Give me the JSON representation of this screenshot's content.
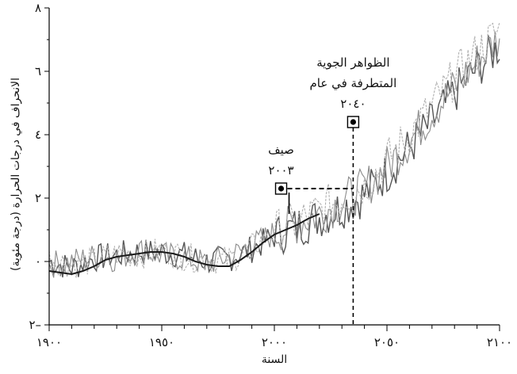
{
  "chart_data": {
    "type": "line",
    "xlabel": "السنة",
    "ylabel": "الانحراف في درجات الحرارة (درجة مئوية)",
    "xlim": [
      1900,
      2100
    ],
    "ylim": [
      -2,
      8
    ],
    "x_ticks": [
      1900,
      1950,
      2000,
      2050,
      2100
    ],
    "x_tick_labels": [
      "١٩٠٠",
      "١٩٥٠",
      "٢٠٠٠",
      "٢٠٥٠",
      "٢١٠٠"
    ],
    "y_ticks": [
      -2,
      0,
      2,
      4,
      6,
      8
    ],
    "y_tick_labels": [
      "٢–",
      "٠",
      "٢",
      "٤",
      "٦",
      "٨"
    ],
    "series": [
      {
        "role": "smoothed-observed",
        "color": "#1a1a1a",
        "x": [
          1900,
          1905,
          1910,
          1915,
          1920,
          1925,
          1930,
          1935,
          1940,
          1945,
          1950,
          1955,
          1960,
          1965,
          1970,
          1975,
          1980,
          1985,
          1990,
          1995,
          2000,
          2005,
          2010,
          2015,
          2020
        ],
        "y": [
          -0.3,
          -0.35,
          -0.4,
          -0.3,
          -0.15,
          0.05,
          0.15,
          0.2,
          0.25,
          0.3,
          0.3,
          0.25,
          0.15,
          0.0,
          -0.1,
          -0.15,
          -0.15,
          0.05,
          0.3,
          0.6,
          0.85,
          1.0,
          1.15,
          1.35,
          1.5
        ]
      },
      {
        "role": "simulation-1",
        "color": "#555555",
        "x": [
          1900,
          1910,
          1920,
          1930,
          1940,
          1950,
          1960,
          1970,
          1980,
          1990,
          2000,
          2010,
          2020,
          2030,
          2040,
          2050,
          2060,
          2070,
          2080,
          2090,
          2100
        ],
        "y": [
          0.0,
          -0.2,
          0.1,
          0.2,
          0.3,
          0.3,
          0.2,
          0.0,
          0.1,
          0.4,
          0.8,
          1.1,
          1.4,
          1.7,
          2.1,
          2.8,
          3.6,
          4.4,
          5.3,
          6.1,
          6.8
        ]
      },
      {
        "role": "simulation-2",
        "color": "#8a8a8a",
        "x": [
          1900,
          1910,
          1920,
          1930,
          1940,
          1950,
          1960,
          1970,
          1980,
          1990,
          2000,
          2010,
          2020,
          2030,
          2040,
          2050,
          2060,
          2070,
          2080,
          2090,
          2100
        ],
        "y": [
          -0.1,
          0.0,
          0.15,
          0.1,
          0.35,
          0.2,
          0.1,
          -0.05,
          0.15,
          0.5,
          0.9,
          1.2,
          1.5,
          1.9,
          2.3,
          3.0,
          3.8,
          4.7,
          5.5,
          6.3,
          7.1
        ]
      },
      {
        "role": "simulation-3",
        "color": "#b0b0b0",
        "x": [
          1900,
          1910,
          1920,
          1930,
          1940,
          1950,
          1960,
          1970,
          1980,
          1990,
          2000,
          2010,
          2020,
          2030,
          2040,
          2050,
          2060,
          2070,
          2080,
          2090,
          2100
        ],
        "y": [
          0.1,
          -0.1,
          0.0,
          0.25,
          0.2,
          0.35,
          0.15,
          0.05,
          0.05,
          0.45,
          0.95,
          1.25,
          1.6,
          2.0,
          2.4,
          3.2,
          4.0,
          4.9,
          5.8,
          6.6,
          7.3
        ]
      }
    ],
    "annotations": [
      {
        "name": "summer-2003",
        "lines": [
          "صيف",
          "٢٠٠٣"
        ],
        "point": {
          "x": 2003,
          "y": 2.3
        },
        "connector": "vertical-solid"
      },
      {
        "name": "extreme-2040",
        "lines": [
          "الظواهر الجوية",
          "المتطرفة في عام",
          "٢٠٤٠"
        ],
        "point": {
          "x": 2035,
          "y": 4.4
        },
        "connector": "vertical-dashed"
      }
    ],
    "reference_line": {
      "y": 2.3,
      "x_from": 2003,
      "x_to": 2035,
      "style": "dashed"
    },
    "grid": false,
    "legend": "none"
  }
}
